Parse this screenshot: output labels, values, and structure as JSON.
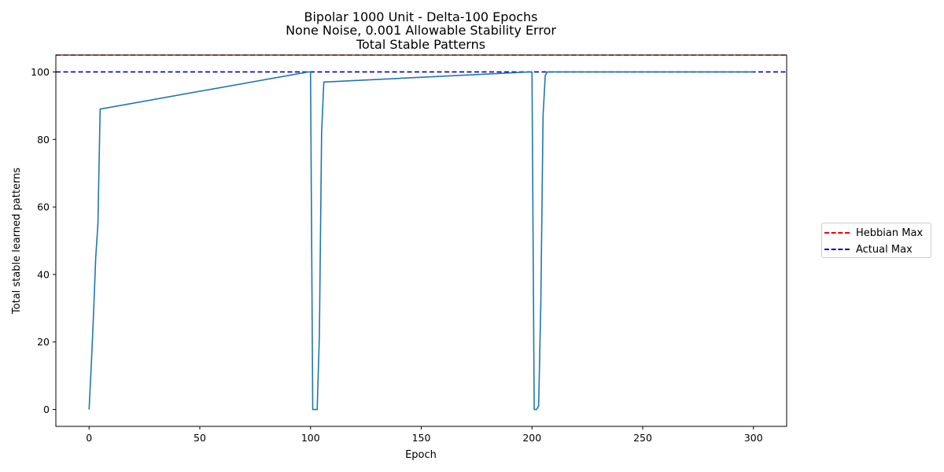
{
  "chart_data": {
    "type": "line",
    "title": [
      "Bipolar 1000 Unit - Delta-100 Epochs",
      "None Noise, 0.001 Allowable Stability Error",
      "Total Stable Patterns"
    ],
    "xlabel": "Epoch",
    "ylabel": "Total stable learned patterns",
    "xlim": [
      -15,
      315
    ],
    "ylim": [
      -5,
      105
    ],
    "xticks": [
      0,
      50,
      100,
      150,
      200,
      250,
      300
    ],
    "yticks": [
      0,
      20,
      40,
      60,
      80,
      100
    ],
    "grid": false,
    "legend_placement": "outside-right",
    "series": [
      {
        "name": "",
        "color": "#1f77b4",
        "style": "solid",
        "x": [
          0,
          1,
          2,
          3,
          4,
          5,
          99,
          100,
          101,
          102,
          103,
          104,
          105,
          106,
          199,
          200,
          201,
          202,
          203,
          204,
          205,
          206,
          207,
          300
        ],
        "y": [
          0,
          13,
          28,
          45,
          55,
          89,
          100,
          100,
          0,
          0,
          0,
          22,
          82,
          97,
          100,
          100,
          0,
          0,
          1,
          32,
          87,
          99,
          100,
          100
        ]
      }
    ],
    "reference_lines": [
      {
        "name": "Hebbian Max",
        "y": 105,
        "color": "#ff0000",
        "style": "dashed"
      },
      {
        "name": "Actual Max",
        "y": 100,
        "color": "#0000cc",
        "style": "dashed"
      }
    ]
  }
}
